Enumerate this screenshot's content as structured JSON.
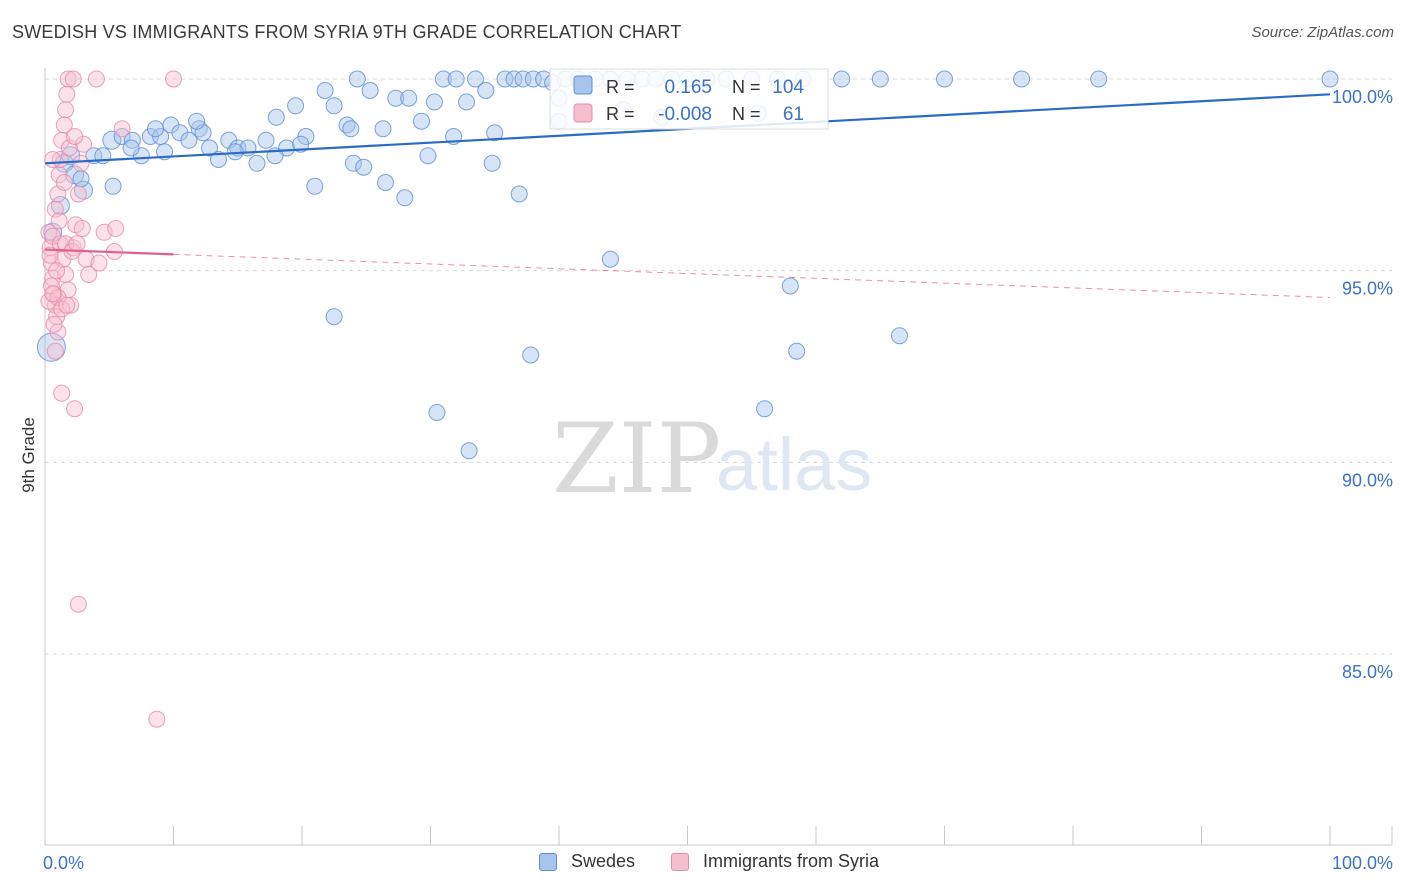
{
  "header": {
    "title": "SWEDISH VS IMMIGRANTS FROM SYRIA 9TH GRADE CORRELATION CHART",
    "source": "Source: ZipAtlas.com"
  },
  "colors": {
    "blue_fill": "#a7c4ec",
    "blue_stroke": "#5b8fd4",
    "blue_line": "#2a6bc8",
    "pink_fill": "#f6bfd0",
    "pink_stroke": "#e78aa8",
    "pink_line": "#e0608a",
    "axis_label": "#3b72c4",
    "grid": "#d8d8d8",
    "watermark": "#d9d9d9"
  },
  "watermark": {
    "zip": "ZIP",
    "atlas": "atlas"
  },
  "stats_legend": {
    "rows": [
      {
        "r_label": "R =",
        "r_value": "0.165",
        "n_label": "N =",
        "n_value": "104",
        "series": "blue"
      },
      {
        "r_label": "R =",
        "r_value": "-0.008",
        "n_label": "N =",
        "n_value": "61",
        "series": "pink"
      }
    ]
  },
  "legend": {
    "items": [
      {
        "label": "Swedes",
        "series": "blue"
      },
      {
        "label": "Immigrants from Syria",
        "series": "pink"
      }
    ]
  },
  "chart_data": {
    "type": "scatter",
    "title": "SWEDISH VS IMMIGRANTS FROM SYRIA 9TH GRADE CORRELATION CHART",
    "xlabel": "",
    "ylabel": "9th Grade",
    "xlim": [
      0,
      100
    ],
    "ylim": [
      80.5,
      100.9
    ],
    "x_tick_labels": [
      "0.0%",
      "100.0%"
    ],
    "y_ticks": [
      {
        "value": 100,
        "label": "100.0%"
      },
      {
        "value": 95,
        "label": "95.0%"
      },
      {
        "value": 90,
        "label": "90.0%"
      },
      {
        "value": 85,
        "label": "85.0%"
      }
    ],
    "series": [
      {
        "name": "Swedes",
        "color": "blue",
        "r": 0.165,
        "n": 104,
        "trend": {
          "x0": 0,
          "y0": 97.8,
          "x1": 100,
          "y1": 99.6
        },
        "points": [
          [
            0.5,
            93.0,
            14
          ],
          [
            0.6,
            96.0,
            9
          ],
          [
            1.2,
            96.7,
            9
          ],
          [
            1.5,
            97.8,
            9
          ],
          [
            2.0,
            98.0,
            9
          ],
          [
            2.3,
            97.5,
            9
          ],
          [
            3.0,
            97.1,
            9
          ],
          [
            3.8,
            98.0,
            8
          ],
          [
            4.5,
            98.0,
            8
          ],
          [
            5.2,
            98.4,
            9
          ],
          [
            6.0,
            98.5,
            8
          ],
          [
            6.8,
            98.4,
            8
          ],
          [
            7.5,
            98.0,
            8
          ],
          [
            8.2,
            98.5,
            8
          ],
          [
            9.0,
            98.5,
            8
          ],
          [
            9.8,
            98.8,
            8
          ],
          [
            10.5,
            98.6,
            8
          ],
          [
            11.2,
            98.4,
            8
          ],
          [
            12.0,
            98.7,
            8
          ],
          [
            12.8,
            98.2,
            8
          ],
          [
            13.5,
            97.9,
            8
          ],
          [
            14.3,
            98.4,
            8
          ],
          [
            15.0,
            98.2,
            8
          ],
          [
            15.8,
            98.2,
            8
          ],
          [
            16.5,
            97.8,
            8
          ],
          [
            17.2,
            98.4,
            8
          ],
          [
            18.0,
            99.0,
            8
          ],
          [
            18.8,
            98.2,
            8
          ],
          [
            19.5,
            99.3,
            8
          ],
          [
            20.3,
            98.5,
            8
          ],
          [
            21.0,
            97.2,
            8
          ],
          [
            21.8,
            99.7,
            8
          ],
          [
            22.5,
            99.3,
            8
          ],
          [
            23.5,
            98.8,
            8
          ],
          [
            24.3,
            100.0,
            8
          ],
          [
            25.3,
            99.7,
            8
          ],
          [
            26.3,
            98.7,
            8
          ],
          [
            27.3,
            99.5,
            8
          ],
          [
            28.3,
            99.5,
            8
          ],
          [
            29.3,
            98.9,
            8
          ],
          [
            30.3,
            99.4,
            8
          ],
          [
            31.0,
            100.0,
            8
          ],
          [
            32.0,
            100.0,
            8
          ],
          [
            32.8,
            99.4,
            8
          ],
          [
            33.5,
            100.0,
            8
          ],
          [
            34.3,
            99.7,
            8
          ],
          [
            35.0,
            98.6,
            8
          ],
          [
            35.8,
            100.0,
            8
          ],
          [
            36.5,
            100.0,
            8
          ],
          [
            37.2,
            100.0,
            8
          ],
          [
            38.0,
            100.0,
            8
          ],
          [
            38.8,
            100.0,
            8
          ],
          [
            39.5,
            99.9,
            8
          ],
          [
            40.5,
            100.0,
            8
          ],
          [
            41.5,
            100.0,
            8
          ],
          [
            42.8,
            100.0,
            8
          ],
          [
            44.0,
            100.0,
            8
          ],
          [
            45.3,
            100.0,
            8
          ],
          [
            46.5,
            100.0,
            8
          ],
          [
            47.5,
            100.0,
            8
          ],
          [
            48.8,
            100.0,
            8
          ],
          [
            50.0,
            100.0,
            8
          ],
          [
            51.5,
            100.0,
            8
          ],
          [
            53.0,
            100.0,
            8
          ],
          [
            55.0,
            100.0,
            8
          ],
          [
            57.0,
            100.0,
            8
          ],
          [
            59.0,
            100.0,
            8
          ],
          [
            62.0,
            100.0,
            8
          ],
          [
            65.0,
            100.0,
            8
          ],
          [
            70.0,
            100.0,
            8
          ],
          [
            76.0,
            100.0,
            8
          ],
          [
            82.0,
            100.0,
            8
          ],
          [
            100.0,
            100.0,
            8
          ],
          [
            6.7,
            98.2,
            8
          ],
          [
            9.3,
            98.1,
            8
          ],
          [
            12.3,
            98.6,
            8
          ],
          [
            14.8,
            98.1,
            8
          ],
          [
            17.9,
            98.0,
            8
          ],
          [
            24.0,
            97.8,
            8
          ],
          [
            24.8,
            97.7,
            8
          ],
          [
            26.5,
            97.3,
            8
          ],
          [
            28.0,
            96.9,
            8
          ],
          [
            36.9,
            97.0,
            8
          ],
          [
            2.8,
            97.4,
            8
          ],
          [
            5.3,
            97.2,
            8
          ],
          [
            8.6,
            98.7,
            8
          ],
          [
            11.8,
            98.9,
            8
          ],
          [
            19.9,
            98.3,
            8
          ],
          [
            23.8,
            98.7,
            8
          ],
          [
            29.8,
            98.0,
            8
          ],
          [
            31.8,
            98.5,
            8
          ],
          [
            34.8,
            97.8,
            8
          ],
          [
            40.0,
            98.9,
            8
          ],
          [
            45.0,
            99.2,
            8
          ],
          [
            48.0,
            99.0,
            8
          ],
          [
            55.5,
            99.1,
            8
          ],
          [
            44.0,
            95.3,
            8
          ],
          [
            58.0,
            94.6,
            8
          ],
          [
            22.5,
            93.8,
            8
          ],
          [
            37.8,
            92.8,
            8
          ],
          [
            58.5,
            92.9,
            8
          ],
          [
            66.5,
            93.3,
            8
          ],
          [
            30.5,
            91.3,
            8
          ],
          [
            56.0,
            91.4,
            8
          ],
          [
            33.0,
            90.3,
            8
          ],
          [
            40.0,
            99.5,
            8
          ]
        ]
      },
      {
        "name": "Immigrants from Syria",
        "color": "pink",
        "r": -0.008,
        "n": 61,
        "trend": {
          "x0": 0,
          "y0": 95.55,
          "x1": 100,
          "y1": 94.3,
          "solid_until": 10
        },
        "points": [
          [
            0.3,
            96.0,
            8
          ],
          [
            0.4,
            95.6,
            8
          ],
          [
            0.5,
            95.2,
            8
          ],
          [
            0.6,
            94.8,
            8
          ],
          [
            0.7,
            94.4,
            8
          ],
          [
            0.8,
            94.1,
            8
          ],
          [
            0.9,
            93.8,
            8
          ],
          [
            1.0,
            93.4,
            8
          ],
          [
            0.3,
            94.2,
            8
          ],
          [
            0.5,
            94.6,
            8
          ],
          [
            0.6,
            95.9,
            8
          ],
          [
            0.8,
            96.6,
            8
          ],
          [
            1.0,
            97.0,
            8
          ],
          [
            1.1,
            97.5,
            8
          ],
          [
            1.2,
            97.9,
            8
          ],
          [
            1.3,
            98.4,
            8
          ],
          [
            1.5,
            98.8,
            8
          ],
          [
            1.6,
            99.2,
            8
          ],
          [
            1.7,
            99.6,
            8
          ],
          [
            1.8,
            100.0,
            8
          ],
          [
            2.2,
            100.0,
            8
          ],
          [
            4.0,
            100.0,
            8
          ],
          [
            10.0,
            100.0,
            8
          ],
          [
            1.2,
            95.7,
            8
          ],
          [
            1.4,
            95.3,
            8
          ],
          [
            1.6,
            94.9,
            8
          ],
          [
            1.8,
            94.5,
            8
          ],
          [
            2.0,
            94.1,
            8
          ],
          [
            2.2,
            95.6,
            8
          ],
          [
            2.4,
            96.2,
            8
          ],
          [
            2.6,
            97.0,
            8
          ],
          [
            2.8,
            97.8,
            8
          ],
          [
            3.0,
            98.3,
            8
          ],
          [
            3.2,
            95.3,
            8
          ],
          [
            3.4,
            94.9,
            8
          ],
          [
            4.2,
            95.2,
            8
          ],
          [
            4.6,
            96.0,
            8
          ],
          [
            5.5,
            96.1,
            8
          ],
          [
            6.0,
            98.7,
            8
          ],
          [
            1.0,
            94.3,
            8
          ],
          [
            1.3,
            94.0,
            8
          ],
          [
            0.7,
            93.6,
            8
          ],
          [
            0.9,
            95.0,
            8
          ],
          [
            1.1,
            96.3,
            8
          ],
          [
            1.5,
            97.3,
            8
          ],
          [
            1.9,
            98.2,
            8
          ],
          [
            2.3,
            98.5,
            8
          ],
          [
            0.6,
            97.9,
            8
          ],
          [
            0.8,
            92.9,
            8
          ],
          [
            1.3,
            91.8,
            8
          ],
          [
            2.3,
            91.4,
            8
          ],
          [
            2.6,
            86.3,
            8
          ],
          [
            8.7,
            83.3,
            8
          ],
          [
            1.6,
            95.7,
            8
          ],
          [
            2.1,
            95.5,
            8
          ],
          [
            2.5,
            95.7,
            8
          ],
          [
            0.4,
            95.4,
            8
          ],
          [
            0.6,
            94.4,
            8
          ],
          [
            1.7,
            94.1,
            8
          ],
          [
            5.4,
            95.5,
            8
          ],
          [
            2.9,
            96.1,
            8
          ]
        ]
      }
    ]
  }
}
